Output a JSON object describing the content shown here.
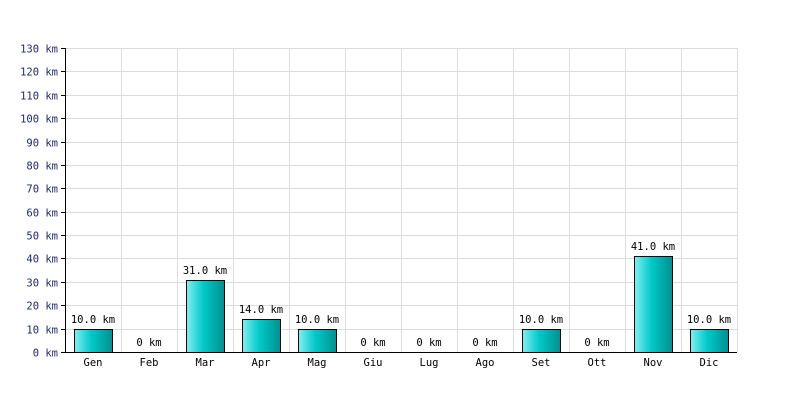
{
  "chart_data": {
    "type": "bar",
    "categories": [
      "Gen",
      "Feb",
      "Mar",
      "Apr",
      "Mag",
      "Giu",
      "Lug",
      "Ago",
      "Set",
      "Ott",
      "Nov",
      "Dic"
    ],
    "values": [
      10.0,
      0,
      31.0,
      14.0,
      10.0,
      0,
      0,
      0,
      10.0,
      0,
      41.0,
      10.0
    ],
    "data_labels": [
      "10.0 km",
      "0 km",
      "31.0 km",
      "14.0 km",
      "10.0 km",
      "0 km",
      "0 km",
      "0 km",
      "10.0 km",
      "0 km",
      "41.0 km",
      "10.0 km"
    ],
    "y_ticks": [
      0,
      10,
      20,
      30,
      40,
      50,
      60,
      70,
      80,
      90,
      100,
      110,
      120,
      130
    ],
    "y_tick_labels": [
      "0 km",
      "10 km",
      "20 km",
      "30 km",
      "40 km",
      "50 km",
      "60 km",
      "70 km",
      "80 km",
      "90 km",
      "100 km",
      "110 km",
      "120 km",
      "130 km"
    ],
    "ylim": [
      0,
      130
    ],
    "title": "",
    "xlabel": "",
    "ylabel": "",
    "grid": true,
    "bar_color": "#00c8c8",
    "bar_color_light": "#7ff0f0",
    "bar_color_dark": "#009090"
  }
}
